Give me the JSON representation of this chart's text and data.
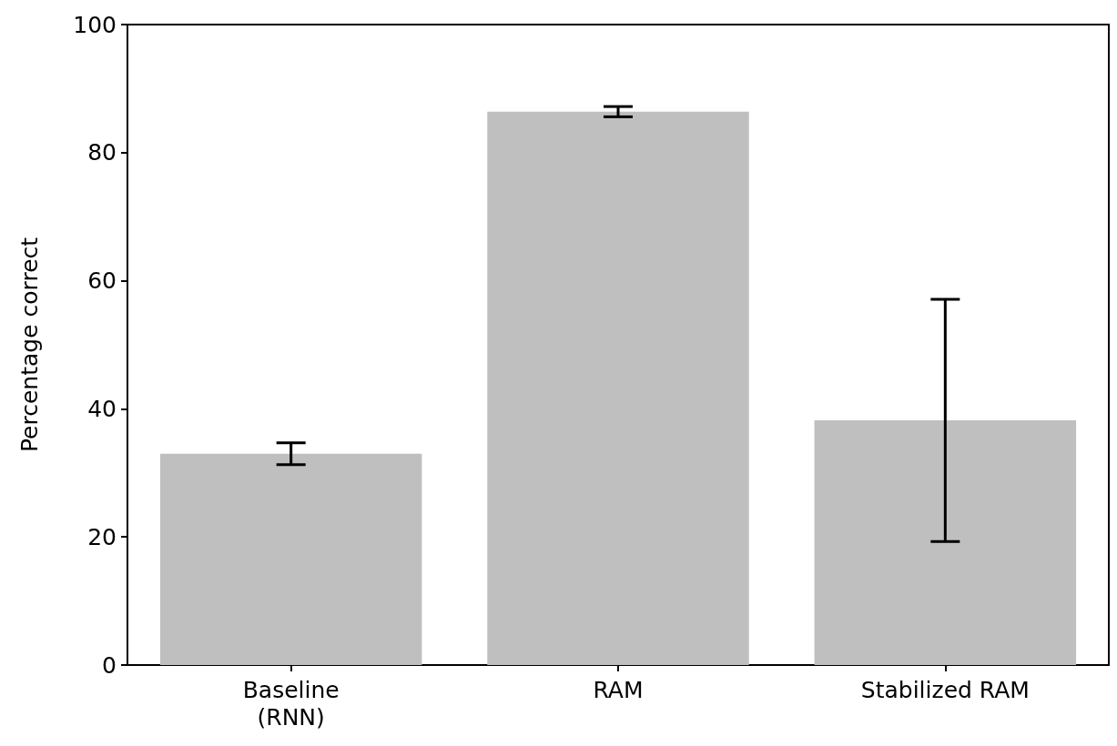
{
  "chart_data": {
    "type": "bar",
    "ylabel": "Percentage correct",
    "categories": [
      "Baseline\n(RNN)",
      "RAM",
      "Stabilized RAM"
    ],
    "values": [
      33.0,
      86.4,
      38.2
    ],
    "errors": [
      1.7,
      0.8,
      18.9
    ],
    "color": "#bfbfbf",
    "ylim": [
      0,
      100
    ],
    "yticks": [
      0,
      20,
      40,
      60,
      80,
      100
    ],
    "grid": false
  }
}
